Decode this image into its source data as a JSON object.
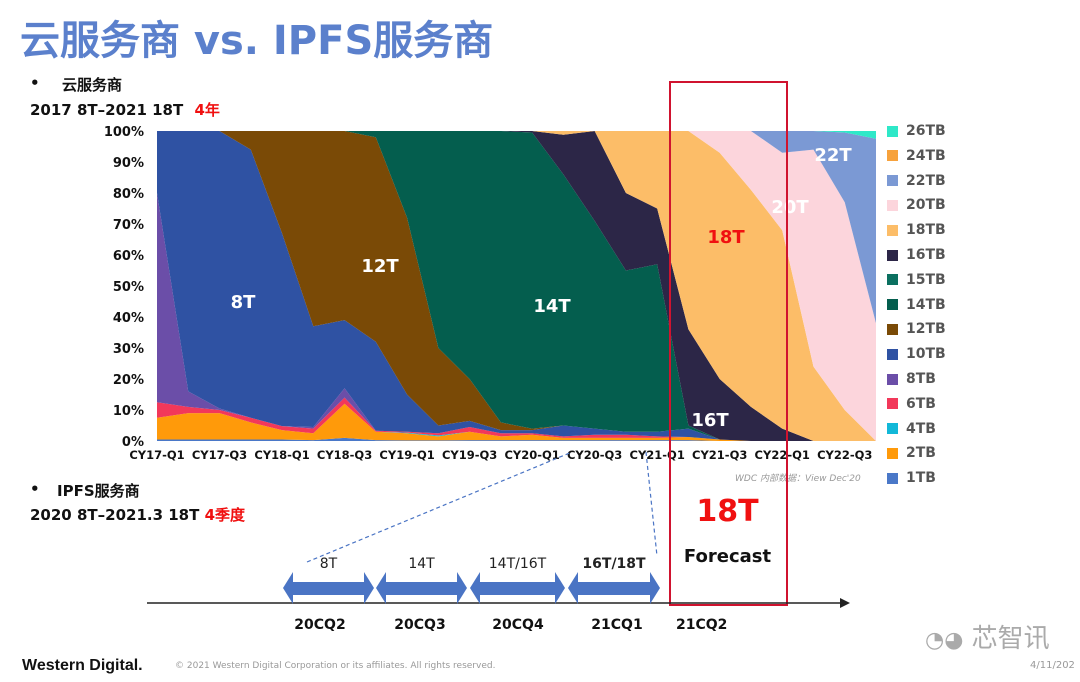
{
  "slide": {
    "title": "云服务商 vs. IPFS服务商",
    "cloud_bullet": "•",
    "cloud_heading": "云服务商",
    "cloud_summary": "2017 8T–2021 18T",
    "cloud_duration": "4年",
    "ipfs_bullet": "•",
    "ipfs_heading": "IPFS服务商",
    "ipfs_summary": "2020 8T–2021.3 18T",
    "ipfs_duration": "4季度",
    "forecast_capacity": "18T",
    "forecast_label": "Forecast",
    "source_note": "WDC 内部数据：View Dec'20",
    "footer_brand": "Western Digital.",
    "footer_copyright": "© 2021 Western Digital Corporation or its affiliates. All rights reserved.",
    "footer_date": "4/11/202",
    "watermark": "芯智讯"
  },
  "timeline": {
    "segments": [
      {
        "label": "8T",
        "quarter": "20CQ2"
      },
      {
        "label": "14T",
        "quarter": "20CQ3"
      },
      {
        "label": "14T/16T",
        "quarter": "20CQ4"
      },
      {
        "label": "16T/18T",
        "quarter": "21CQ1"
      }
    ],
    "forecast_quarter": "21CQ2",
    "arrow_color": "#4a74c4"
  },
  "chart_data": {
    "type": "area",
    "stacked": true,
    "normalized": true,
    "categories": [
      "CY17-Q1",
      "CY17-Q2",
      "CY17-Q3",
      "CY17-Q4",
      "CY18-Q1",
      "CY18-Q2",
      "CY18-Q3",
      "CY18-Q4",
      "CY19-Q1",
      "CY19-Q2",
      "CY19-Q3",
      "CY19-Q4",
      "CY20-Q1",
      "CY20-Q2",
      "CY20-Q3",
      "CY20-Q4",
      "CY21-Q1",
      "CY21-Q2",
      "CY21-Q3",
      "CY21-Q4",
      "CY22-Q1",
      "CY22-Q2",
      "CY22-Q3",
      "CY22-Q4"
    ],
    "x_tick_labels": [
      "CY17-Q1",
      "CY17-Q3",
      "CY18-Q1",
      "CY18-Q3",
      "CY19-Q1",
      "CY19-Q3",
      "CY20-Q1",
      "CY20-Q3",
      "CY21-Q1",
      "CY21-Q3",
      "CY22-Q1",
      "CY22-Q3"
    ],
    "y_tick_labels": [
      "0%",
      "10%",
      "20%",
      "30%",
      "40%",
      "50%",
      "60%",
      "70%",
      "80%",
      "90%",
      "100%"
    ],
    "ylim": [
      0,
      100
    ],
    "grid": false,
    "legend_position": "right",
    "series": [
      {
        "name": "1TB",
        "color": "#4a78c8",
        "values": [
          0.5,
          0.5,
          0.5,
          0.5,
          0.5,
          0.3,
          1,
          0.3,
          0.2,
          0.2,
          0.3,
          0.3,
          0.3,
          0.3,
          0.3,
          0.3,
          0.3,
          0.3,
          0,
          0,
          0,
          0,
          0,
          0
        ]
      },
      {
        "name": "2TB",
        "color": "#ff9a0a",
        "values": [
          7,
          8.5,
          8.5,
          5.5,
          3,
          2.2,
          11,
          2.7,
          2.3,
          1.3,
          2.7,
          1.2,
          1.7,
          0.7,
          0.7,
          0.7,
          0.7,
          1,
          0.5,
          0,
          0,
          0,
          0,
          0
        ]
      },
      {
        "name": "4TB",
        "color": "#12b8d8",
        "values": [
          0,
          0,
          0,
          0,
          0,
          0,
          0,
          0,
          0.2,
          0.3,
          0,
          0,
          0,
          0,
          0,
          0,
          0,
          0,
          0,
          0,
          0,
          0,
          0,
          0
        ]
      },
      {
        "name": "6TB",
        "color": "#f2385a",
        "values": [
          5,
          2,
          1,
          1.5,
          1.3,
          1.5,
          2,
          0.3,
          0.3,
          0.7,
          1.5,
          1,
          0.5,
          0.5,
          1,
          1,
          0.5,
          0,
          0,
          0,
          0,
          0,
          0,
          0
        ]
      },
      {
        "name": "8TB",
        "color": "#6b4ea8",
        "values": [
          67.5,
          5,
          0.5,
          0,
          0,
          0.5,
          3,
          0,
          0,
          0,
          0,
          0,
          0,
          0,
          0,
          0,
          0,
          0,
          0,
          0,
          0,
          0,
          0,
          0
        ]
      },
      {
        "name": "10TB",
        "color": "#2f52a3",
        "values": [
          20,
          84,
          89.5,
          86.5,
          62.2,
          32.5,
          22,
          28.7,
          12,
          2.5,
          2,
          1,
          1,
          3.5,
          2,
          1,
          1.5,
          2.7,
          0,
          0,
          0,
          0,
          0,
          0
        ]
      },
      {
        "name": "12TB",
        "color": "#7a4a06",
        "values": [
          0,
          0,
          0,
          6,
          33,
          63,
          61,
          66,
          57,
          25,
          13.5,
          2.5,
          0.5,
          0,
          0,
          0,
          0,
          0,
          0,
          0,
          0,
          0,
          0,
          0
        ]
      },
      {
        "name": "14TB",
        "color": "#045e4e",
        "values": [
          0,
          0,
          0,
          0,
          0,
          0,
          0,
          2,
          28,
          70,
          80,
          94,
          95.5,
          81,
          67,
          52,
          54,
          1,
          0,
          0,
          0,
          0,
          0,
          0
        ]
      },
      {
        "name": "15TB",
        "color": "#0b7060",
        "values": [
          0,
          0,
          0,
          0,
          0,
          0,
          0,
          0,
          0,
          0,
          0,
          0,
          0,
          0,
          0,
          0,
          0,
          0,
          0,
          0,
          0,
          0,
          0,
          0
        ]
      },
      {
        "name": "16TB",
        "color": "#2c2647",
        "values": [
          0,
          0,
          0,
          0,
          0,
          0,
          0,
          0,
          0,
          0,
          0,
          0,
          0.5,
          12.8,
          29,
          25,
          18,
          31,
          19.5,
          11,
          4,
          0,
          0,
          0
        ]
      },
      {
        "name": "18TB",
        "color": "#fcbd68",
        "values": [
          0,
          0,
          0,
          0,
          0,
          0,
          0,
          0,
          0,
          0,
          0,
          0,
          0,
          1.2,
          0,
          20,
          25,
          64,
          73,
          70,
          64,
          24,
          10,
          0
        ]
      },
      {
        "name": "20TB",
        "color": "#fcd5dc",
        "values": [
          0,
          0,
          0,
          0,
          0,
          0,
          0,
          0,
          0,
          0,
          0,
          0,
          0,
          0,
          0,
          0,
          0,
          0,
          7,
          19,
          25,
          70,
          67,
          38
        ]
      },
      {
        "name": "22TB",
        "color": "#7b99d4",
        "values": [
          0,
          0,
          0,
          0,
          0,
          0,
          0,
          0,
          0,
          0,
          0,
          0,
          0,
          0,
          0,
          0,
          0,
          0,
          0,
          0,
          7,
          6,
          22.5,
          59.5
        ]
      },
      {
        "name": "24TB",
        "color": "#f7a23c",
        "values": [
          0,
          0,
          0,
          0,
          0,
          0,
          0,
          0,
          0,
          0,
          0,
          0,
          0,
          0,
          0,
          0,
          0,
          0,
          0,
          0,
          0,
          0,
          0,
          0
        ]
      },
      {
        "name": "26TB",
        "color": "#2ee8c8",
        "values": [
          0,
          0,
          0,
          0,
          0,
          0,
          0,
          0,
          0,
          0,
          0,
          0,
          0,
          0,
          0,
          0,
          0,
          0,
          0,
          0,
          0,
          0,
          0.5,
          2.5
        ]
      }
    ],
    "annotations": [
      {
        "text": "8T",
        "color": "#ffffff"
      },
      {
        "text": "12T",
        "color": "#ffffff"
      },
      {
        "text": "14T",
        "color": "#ffffff"
      },
      {
        "text": "18T",
        "color": "#f01010"
      },
      {
        "text": "20T",
        "color": "#ffffff"
      },
      {
        "text": "22T",
        "color": "#ffffff"
      },
      {
        "text": "16T",
        "color": "#ffffff"
      }
    ]
  }
}
